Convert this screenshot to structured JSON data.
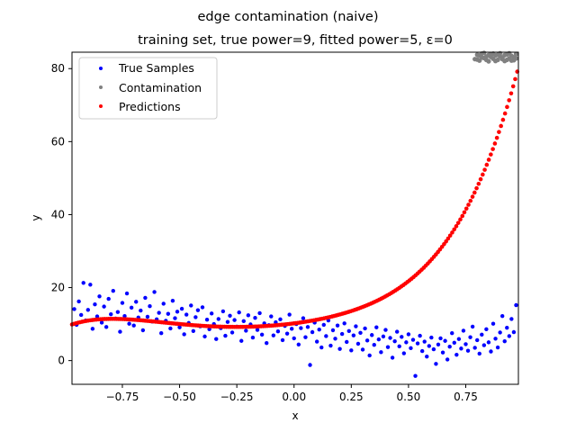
{
  "chart_data": {
    "type": "scatter",
    "title": "edge contamination (naive)",
    "subtitle": "training set, true power=9, fitted power=5, ε=0",
    "xlabel": "x",
    "ylabel": "y",
    "xlim": [
      -0.97,
      0.98
    ],
    "ylim": [
      -6.5,
      84.5
    ],
    "x_ticks": [
      -0.75,
      -0.5,
      -0.25,
      0.0,
      0.25,
      0.5,
      0.75
    ],
    "x_tick_labels": [
      "−0.75",
      "−0.50",
      "−0.25",
      "0.00",
      "0.25",
      "0.50",
      "0.75"
    ],
    "y_ticks": [
      0,
      20,
      40,
      60,
      80
    ],
    "y_tick_labels": [
      "0",
      "20",
      "40",
      "60",
      "80"
    ],
    "grid": false,
    "legend_position": "top-left",
    "series": [
      {
        "name": "True Samples",
        "color": "#0000ff",
        "points": [
          [
            -0.96,
            14.1
          ],
          [
            -0.95,
            9.8
          ],
          [
            -0.94,
            16.2
          ],
          [
            -0.93,
            12.5
          ],
          [
            -0.92,
            21.3
          ],
          [
            -0.91,
            11.0
          ],
          [
            -0.9,
            13.9
          ],
          [
            -0.89,
            20.8
          ],
          [
            -0.88,
            8.7
          ],
          [
            -0.87,
            15.4
          ],
          [
            -0.86,
            12.1
          ],
          [
            -0.85,
            17.6
          ],
          [
            -0.84,
            10.4
          ],
          [
            -0.83,
            14.8
          ],
          [
            -0.82,
            9.2
          ],
          [
            -0.81,
            16.9
          ],
          [
            -0.8,
            12.7
          ],
          [
            -0.79,
            19.1
          ],
          [
            -0.78,
            11.5
          ],
          [
            -0.77,
            13.3
          ],
          [
            -0.76,
            7.9
          ],
          [
            -0.75,
            15.8
          ],
          [
            -0.74,
            12.2
          ],
          [
            -0.73,
            18.4
          ],
          [
            -0.72,
            10.1
          ],
          [
            -0.71,
            14.5
          ],
          [
            -0.7,
            9.6
          ],
          [
            -0.69,
            16.1
          ],
          [
            -0.68,
            11.8
          ],
          [
            -0.67,
            13.7
          ],
          [
            -0.66,
            8.3
          ],
          [
            -0.65,
            17.2
          ],
          [
            -0.64,
            12.0
          ],
          [
            -0.63,
            14.9
          ],
          [
            -0.62,
            10.7
          ],
          [
            -0.61,
            18.8
          ],
          [
            -0.6,
            11.3
          ],
          [
            -0.59,
            13.1
          ],
          [
            -0.58,
            7.5
          ],
          [
            -0.57,
            15.6
          ],
          [
            -0.56,
            10.9
          ],
          [
            -0.55,
            12.8
          ],
          [
            -0.54,
            8.8
          ],
          [
            -0.53,
            16.4
          ],
          [
            -0.52,
            11.6
          ],
          [
            -0.51,
            13.4
          ],
          [
            -0.5,
            9.1
          ],
          [
            -0.49,
            14.2
          ],
          [
            -0.48,
            7.2
          ],
          [
            -0.47,
            12.6
          ],
          [
            -0.46,
            10.3
          ],
          [
            -0.45,
            15.1
          ],
          [
            -0.44,
            8.1
          ],
          [
            -0.43,
            11.9
          ],
          [
            -0.42,
            13.8
          ],
          [
            -0.41,
            9.4
          ],
          [
            -0.4,
            14.6
          ],
          [
            -0.39,
            6.6
          ],
          [
            -0.38,
            11.2
          ],
          [
            -0.37,
            8.6
          ],
          [
            -0.36,
            12.9
          ],
          [
            -0.35,
            10.0
          ],
          [
            -0.34,
            5.9
          ],
          [
            -0.33,
            11.4
          ],
          [
            -0.32,
            8.9
          ],
          [
            -0.31,
            13.5
          ],
          [
            -0.3,
            6.8
          ],
          [
            -0.29,
            10.6
          ],
          [
            -0.28,
            12.3
          ],
          [
            -0.27,
            7.7
          ],
          [
            -0.26,
            11.1
          ],
          [
            -0.25,
            9.3
          ],
          [
            -0.24,
            13.2
          ],
          [
            -0.23,
            5.4
          ],
          [
            -0.22,
            10.8
          ],
          [
            -0.21,
            8.2
          ],
          [
            -0.2,
            12.4
          ],
          [
            -0.19,
            9.9
          ],
          [
            -0.18,
            6.3
          ],
          [
            -0.17,
            11.7
          ],
          [
            -0.16,
            8.4
          ],
          [
            -0.15,
            13.0
          ],
          [
            -0.14,
            7.1
          ],
          [
            -0.13,
            10.2
          ],
          [
            -0.12,
            4.8
          ],
          [
            -0.11,
            9.7
          ],
          [
            -0.1,
            12.1
          ],
          [
            -0.09,
            6.9
          ],
          [
            -0.08,
            10.5
          ],
          [
            -0.07,
            8.0
          ],
          [
            -0.06,
            11.3
          ],
          [
            -0.05,
            5.6
          ],
          [
            -0.04,
            9.5
          ],
          [
            -0.03,
            7.4
          ],
          [
            -0.02,
            12.6
          ],
          [
            -0.01,
            8.7
          ],
          [
            0.0,
            6.1
          ],
          [
            0.01,
            10.0
          ],
          [
            0.02,
            4.4
          ],
          [
            0.03,
            8.9
          ],
          [
            0.04,
            11.6
          ],
          [
            0.05,
            6.4
          ],
          [
            0.06,
            9.2
          ],
          [
            0.07,
            -1.2
          ],
          [
            0.08,
            7.8
          ],
          [
            0.09,
            10.4
          ],
          [
            0.1,
            5.2
          ],
          [
            0.11,
            8.5
          ],
          [
            0.12,
            3.6
          ],
          [
            0.13,
            9.8
          ],
          [
            0.14,
            6.7
          ],
          [
            0.15,
            11.0
          ],
          [
            0.16,
            4.1
          ],
          [
            0.17,
            8.3
          ],
          [
            0.18,
            6.0
          ],
          [
            0.19,
            9.6
          ],
          [
            0.2,
            3.2
          ],
          [
            0.21,
            7.3
          ],
          [
            0.22,
            10.2
          ],
          [
            0.23,
            5.1
          ],
          [
            0.24,
            8.1
          ],
          [
            0.25,
            2.8
          ],
          [
            0.26,
            6.9
          ],
          [
            0.27,
            9.4
          ],
          [
            0.28,
            4.6
          ],
          [
            0.29,
            7.6
          ],
          [
            0.3,
            3.0
          ],
          [
            0.31,
            8.8
          ],
          [
            0.32,
            5.5
          ],
          [
            0.33,
            1.4
          ],
          [
            0.34,
            7.0
          ],
          [
            0.35,
            4.3
          ],
          [
            0.36,
            9.1
          ],
          [
            0.37,
            5.8
          ],
          [
            0.38,
            2.3
          ],
          [
            0.39,
            6.6
          ],
          [
            0.4,
            8.4
          ],
          [
            0.41,
            3.7
          ],
          [
            0.42,
            6.2
          ],
          [
            0.43,
            0.8
          ],
          [
            0.44,
            5.3
          ],
          [
            0.45,
            7.9
          ],
          [
            0.46,
            3.9
          ],
          [
            0.47,
            6.5
          ],
          [
            0.48,
            2.0
          ],
          [
            0.49,
            5.0
          ],
          [
            0.5,
            7.2
          ],
          [
            0.51,
            3.4
          ],
          [
            0.52,
            5.7
          ],
          [
            0.53,
            -4.2
          ],
          [
            0.54,
            4.7
          ],
          [
            0.55,
            6.8
          ],
          [
            0.56,
            2.6
          ],
          [
            0.57,
            5.2
          ],
          [
            0.58,
            1.1
          ],
          [
            0.59,
            4.0
          ],
          [
            0.6,
            6.3
          ],
          [
            0.61,
            3.1
          ],
          [
            0.62,
            -0.9
          ],
          [
            0.63,
            4.4
          ],
          [
            0.64,
            6.1
          ],
          [
            0.65,
            2.2
          ],
          [
            0.66,
            5.4
          ],
          [
            0.67,
            0.3
          ],
          [
            0.68,
            3.8
          ],
          [
            0.69,
            7.5
          ],
          [
            0.7,
            4.9
          ],
          [
            0.71,
            1.6
          ],
          [
            0.72,
            5.9
          ],
          [
            0.73,
            3.3
          ],
          [
            0.74,
            8.2
          ],
          [
            0.75,
            4.5
          ],
          [
            0.76,
            2.7
          ],
          [
            0.77,
            6.4
          ],
          [
            0.78,
            9.3
          ],
          [
            0.79,
            3.5
          ],
          [
            0.8,
            5.6
          ],
          [
            0.81,
            1.9
          ],
          [
            0.82,
            7.1
          ],
          [
            0.83,
            4.2
          ],
          [
            0.84,
            8.6
          ],
          [
            0.85,
            5.0
          ],
          [
            0.86,
            2.5
          ],
          [
            0.87,
            10.1
          ],
          [
            0.88,
            6.0
          ],
          [
            0.89,
            3.6
          ],
          [
            0.9,
            7.7
          ],
          [
            0.91,
            12.2
          ],
          [
            0.92,
            5.3
          ],
          [
            0.93,
            9.0
          ],
          [
            0.94,
            6.7
          ],
          [
            0.95,
            11.4
          ],
          [
            0.96,
            7.8
          ],
          [
            0.97,
            15.2
          ]
        ]
      },
      {
        "name": "Contamination",
        "color": "#808080",
        "points": [
          [
            0.79,
            82.6
          ],
          [
            0.8,
            83.8
          ],
          [
            0.81,
            82.2
          ],
          [
            0.82,
            84.1
          ],
          [
            0.83,
            82.9
          ],
          [
            0.84,
            83.3
          ],
          [
            0.85,
            82.0
          ],
          [
            0.86,
            84.0
          ],
          [
            0.87,
            82.7
          ],
          [
            0.88,
            83.6
          ],
          [
            0.89,
            82.4
          ],
          [
            0.9,
            84.2
          ],
          [
            0.91,
            83.0
          ],
          [
            0.92,
            82.1
          ],
          [
            0.93,
            83.9
          ],
          [
            0.94,
            82.8
          ],
          [
            0.95,
            83.5
          ],
          [
            0.96,
            82.3
          ],
          [
            0.97,
            84.0
          ],
          [
            0.8,
            82.5
          ],
          [
            0.82,
            83.0
          ],
          [
            0.84,
            82.4
          ],
          [
            0.86,
            83.2
          ],
          [
            0.88,
            82.1
          ],
          [
            0.9,
            83.4
          ],
          [
            0.92,
            83.7
          ],
          [
            0.94,
            84.2
          ],
          [
            0.96,
            83.1
          ],
          [
            0.81,
            83.6
          ],
          [
            0.83,
            84.3
          ],
          [
            0.85,
            83.7
          ],
          [
            0.87,
            84.1
          ],
          [
            0.89,
            83.8
          ],
          [
            0.91,
            82.6
          ],
          [
            0.93,
            82.4
          ],
          [
            0.95,
            82.2
          ],
          [
            0.97,
            82.8
          ]
        ]
      },
      {
        "name": "Predictions",
        "color": "#ff0000",
        "poly": {
          "c0": 10.2,
          "c1": 8.0,
          "c2": 18.0,
          "c3": 10.0,
          "c4": 19.0,
          "c5": 20.0
        },
        "x_range": [
          -0.97,
          0.975
        ],
        "n_points": 220
      }
    ]
  }
}
